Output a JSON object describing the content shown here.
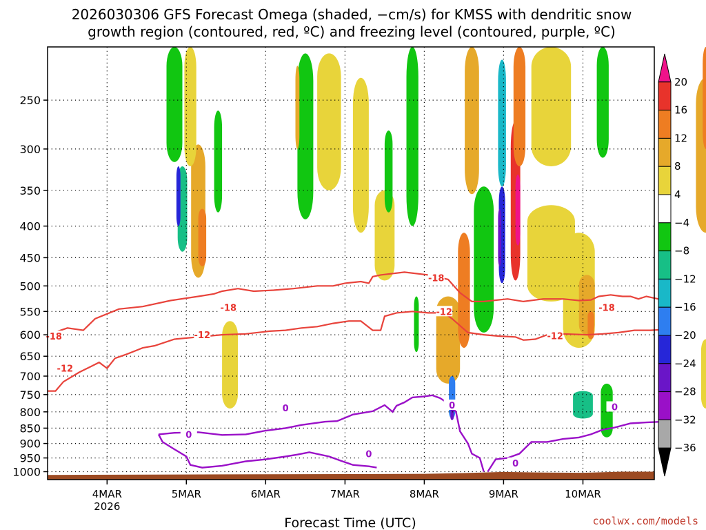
{
  "chart_data": {
    "type": "heatmap",
    "title_lines": [
      "2026030306 GFS Forecast Omega (shaded, −cm/s) for KMSS with dendritic snow",
      "growth region (contoured, red, ºC) and freezing level (contoured, purple, ºC)"
    ],
    "xlabel": "Forecast Time (UTC)",
    "credit": "coolwx.com/models",
    "y_axis": {
      "type": "pressure",
      "inverted": true,
      "ticks": [
        250,
        300,
        350,
        400,
        450,
        500,
        550,
        600,
        650,
        700,
        750,
        800,
        850,
        900,
        950,
        1000
      ],
      "range_hPa": [
        205,
        1030
      ]
    },
    "x_axis": {
      "range_days": [
        "3MAR 06Z",
        "10MAR 18Z"
      ],
      "ticks": [
        {
          "label": "4MAR",
          "sub": "2026",
          "day": 1
        },
        {
          "label": "5MAR",
          "sub": "",
          "day": 2
        },
        {
          "label": "6MAR",
          "sub": "",
          "day": 3
        },
        {
          "label": "7MAR",
          "sub": "",
          "day": 4
        },
        {
          "label": "8MAR",
          "sub": "",
          "day": 5
        },
        {
          "label": "9MAR",
          "sub": "",
          "day": 6
        },
        {
          "label": "10MAR",
          "sub": "",
          "day": 7
        }
      ]
    },
    "colorbar": {
      "labels": [
        "20",
        "16",
        "12",
        "8",
        "4",
        "−4",
        "−8",
        "−12",
        "−16",
        "−20",
        "−24",
        "−28",
        "−32",
        "−36"
      ],
      "colors": [
        "#f0128a",
        "#e8332b",
        "#ee7d22",
        "#e6a92a",
        "#e8d43a",
        "#ffffff",
        "#11c611",
        "#17bf86",
        "#19b8c8",
        "#2e7ef0",
        "#2626d8",
        "#6a15c8",
        "#9a10c8",
        "#a8a8a8",
        "#000000"
      ]
    },
    "grid": true,
    "red_contours": [
      {
        "label": "-18",
        "points": [
          [
            0.0,
            600
          ],
          [
            0.25,
            585
          ],
          [
            0.45,
            590
          ],
          [
            0.6,
            565
          ],
          [
            0.9,
            545
          ],
          [
            1.2,
            540
          ],
          [
            1.55,
            528
          ],
          [
            1.9,
            520
          ],
          [
            2.1,
            515
          ],
          [
            2.2,
            510
          ],
          [
            2.4,
            505
          ],
          [
            2.6,
            510
          ],
          [
            2.85,
            508
          ],
          [
            3.1,
            505
          ],
          [
            3.4,
            500
          ],
          [
            3.6,
            500
          ],
          [
            3.75,
            495
          ],
          [
            3.95,
            492
          ],
          [
            4.05,
            495
          ],
          [
            4.1,
            483
          ],
          [
            4.2,
            480
          ],
          [
            4.5,
            475
          ],
          [
            4.8,
            480
          ],
          [
            5.05,
            488
          ],
          [
            5.2,
            513
          ],
          [
            5.35,
            530
          ],
          [
            5.5,
            530
          ],
          [
            5.8,
            525
          ],
          [
            6.0,
            530
          ],
          [
            6.25,
            525
          ],
          [
            6.5,
            525
          ],
          [
            6.7,
            528
          ],
          [
            6.85,
            527
          ],
          [
            6.95,
            520
          ],
          [
            7.1,
            517
          ],
          [
            7.25,
            520
          ],
          [
            7.35,
            520
          ],
          [
            7.45,
            525
          ],
          [
            7.55,
            520
          ],
          [
            7.7,
            525
          ],
          [
            7.8,
            528
          ]
        ]
      },
      {
        "label": "-12",
        "points": [
          [
            0.0,
            740
          ],
          [
            0.1,
            740
          ],
          [
            0.2,
            715
          ],
          [
            0.4,
            690
          ],
          [
            0.55,
            675
          ],
          [
            0.65,
            665
          ],
          [
            0.75,
            680
          ],
          [
            0.85,
            655
          ],
          [
            1.0,
            645
          ],
          [
            1.2,
            630
          ],
          [
            1.35,
            625
          ],
          [
            1.6,
            610
          ],
          [
            1.9,
            605
          ],
          [
            2.2,
            600
          ],
          [
            2.5,
            598
          ],
          [
            2.8,
            592
          ],
          [
            3.0,
            590
          ],
          [
            3.2,
            585
          ],
          [
            3.4,
            582
          ],
          [
            3.6,
            575
          ],
          [
            3.8,
            570
          ],
          [
            3.95,
            570
          ],
          [
            4.1,
            590
          ],
          [
            4.2,
            590
          ],
          [
            4.25,
            560
          ],
          [
            4.4,
            553
          ],
          [
            4.6,
            550
          ],
          [
            4.8,
            553
          ],
          [
            5.0,
            553
          ],
          [
            5.1,
            565
          ],
          [
            5.2,
            580
          ],
          [
            5.3,
            595
          ],
          [
            5.5,
            600
          ],
          [
            5.7,
            603
          ],
          [
            5.9,
            605
          ],
          [
            6.0,
            612
          ],
          [
            6.15,
            610
          ],
          [
            6.3,
            600
          ],
          [
            6.5,
            598
          ],
          [
            6.8,
            600
          ],
          [
            7.0,
            598
          ],
          [
            7.2,
            595
          ],
          [
            7.4,
            590
          ],
          [
            7.6,
            590
          ],
          [
            7.8,
            588
          ]
        ]
      }
    ],
    "purple_contours": [
      {
        "label": "0",
        "points": [
          [
            1.4,
            870
          ],
          [
            1.6,
            865
          ],
          [
            1.9,
            863
          ],
          [
            2.2,
            872
          ],
          [
            2.5,
            870
          ],
          [
            2.75,
            858
          ],
          [
            3.0,
            850
          ],
          [
            3.2,
            840
          ],
          [
            3.5,
            830
          ],
          [
            3.65,
            828
          ],
          [
            3.85,
            808
          ],
          [
            4.1,
            798
          ],
          [
            4.25,
            780
          ],
          [
            4.35,
            800
          ],
          [
            4.4,
            782
          ],
          [
            4.5,
            772
          ],
          [
            4.6,
            758
          ],
          [
            4.75,
            755
          ],
          [
            4.85,
            752
          ],
          [
            4.95,
            760
          ],
          [
            5.05,
            775
          ],
          [
            5.15,
            800
          ],
          [
            5.2,
            860
          ],
          [
            5.3,
            900
          ],
          [
            5.35,
            935
          ],
          [
            5.45,
            950
          ],
          [
            5.5,
            1000
          ]
        ]
      },
      {
        "label": "0",
        "points": [
          [
            1.4,
            870
          ],
          [
            1.45,
            895
          ],
          [
            1.6,
            920
          ],
          [
            1.75,
            945
          ],
          [
            1.8,
            975
          ],
          [
            1.95,
            985
          ],
          [
            2.2,
            978
          ],
          [
            2.5,
            962
          ],
          [
            2.75,
            955
          ],
          [
            3.0,
            945
          ],
          [
            3.15,
            938
          ],
          [
            3.3,
            930
          ],
          [
            3.55,
            945
          ],
          [
            3.7,
            960
          ],
          [
            3.85,
            975
          ],
          [
            4.05,
            980
          ],
          [
            4.15,
            985
          ]
        ]
      },
      {
        "label": "0",
        "points": [
          [
            5.55,
            1000
          ],
          [
            5.65,
            955
          ],
          [
            5.8,
            950
          ],
          [
            5.95,
            935
          ],
          [
            6.1,
            895
          ],
          [
            6.3,
            895
          ],
          [
            6.5,
            885
          ],
          [
            6.7,
            880
          ],
          [
            6.85,
            870
          ],
          [
            7.0,
            855
          ],
          [
            7.15,
            848
          ],
          [
            7.35,
            835
          ],
          [
            7.55,
            832
          ],
          [
            7.75,
            830
          ],
          [
            7.8,
            828
          ]
        ]
      }
    ],
    "omega_cells": [
      {
        "x": 1.15,
        "p": 390,
        "w": 0.18,
        "h": 190,
        "v": 8
      },
      {
        "x": 1.2,
        "p": 420,
        "w": 0.1,
        "h": 90,
        "v": 12
      },
      {
        "x": 0.95,
        "p": 380,
        "w": 0.12,
        "h": 120,
        "v": -8
      },
      {
        "x": 0.9,
        "p": 360,
        "w": 0.05,
        "h": 80,
        "v": -20
      },
      {
        "x": 0.85,
        "p": 260,
        "w": 0.2,
        "h": 110,
        "v": -4.5
      },
      {
        "x": 1.05,
        "p": 260,
        "w": 0.15,
        "h": 120,
        "v": 4.5
      },
      {
        "x": 1.55,
        "p": 680,
        "w": 0.2,
        "h": 220,
        "v": 4.5
      },
      {
        "x": 1.4,
        "p": 320,
        "w": 0.1,
        "h": 120,
        "v": -4.5
      },
      {
        "x": 2.5,
        "p": 300,
        "w": 0.2,
        "h": 180,
        "v": -4.5
      },
      {
        "x": 2.4,
        "p": 260,
        "w": 0.05,
        "h": 80,
        "v": 8
      },
      {
        "x": 2.8,
        "p": 280,
        "w": 0.3,
        "h": 140,
        "v": 4.5
      },
      {
        "x": 3.2,
        "p": 320,
        "w": 0.2,
        "h": 180,
        "v": 4.5
      },
      {
        "x": 3.5,
        "p": 420,
        "w": 0.25,
        "h": 140,
        "v": 4.5
      },
      {
        "x": 3.55,
        "p": 330,
        "w": 0.1,
        "h": 100,
        "v": -4.5
      },
      {
        "x": 3.85,
        "p": 300,
        "w": 0.15,
        "h": 200,
        "v": -4.5
      },
      {
        "x": 3.9,
        "p": 580,
        "w": 0.06,
        "h": 120,
        "v": -4.5
      },
      {
        "x": 4.3,
        "p": 620,
        "w": 0.3,
        "h": 200,
        "v": 8
      },
      {
        "x": 4.5,
        "p": 520,
        "w": 0.15,
        "h": 220,
        "v": 12
      },
      {
        "x": 4.35,
        "p": 760,
        "w": 0.08,
        "h": 120,
        "v": -16
      },
      {
        "x": 4.35,
        "p": 800,
        "w": 0.04,
        "h": 50,
        "v": -24
      },
      {
        "x": 4.75,
        "p": 470,
        "w": 0.25,
        "h": 250,
        "v": -4.5
      },
      {
        "x": 4.98,
        "p": 420,
        "w": 0.08,
        "h": 150,
        "v": -20
      },
      {
        "x": 4.95,
        "p": 420,
        "w": 0.04,
        "h": 90,
        "v": -24
      },
      {
        "x": 5.15,
        "p": 380,
        "w": 0.12,
        "h": 220,
        "v": 16
      },
      {
        "x": 5.18,
        "p": 380,
        "w": 0.06,
        "h": 100,
        "v": 20
      },
      {
        "x": 4.98,
        "p": 280,
        "w": 0.1,
        "h": 130,
        "v": -12
      },
      {
        "x": 5.2,
        "p": 260,
        "w": 0.15,
        "h": 120,
        "v": 12
      },
      {
        "x": 4.6,
        "p": 280,
        "w": 0.18,
        "h": 150,
        "v": 8
      },
      {
        "x": 5.6,
        "p": 450,
        "w": 0.6,
        "h": 160,
        "v": 4.5
      },
      {
        "x": 5.95,
        "p": 520,
        "w": 0.4,
        "h": 220,
        "v": 4.5
      },
      {
        "x": 6.05,
        "p": 540,
        "w": 0.2,
        "h": 120,
        "v": 8
      },
      {
        "x": 6.1,
        "p": 580,
        "w": 0.08,
        "h": 60,
        "v": 12
      },
      {
        "x": 5.6,
        "p": 260,
        "w": 0.5,
        "h": 120,
        "v": 4.5
      },
      {
        "x": 6.0,
        "p": 780,
        "w": 0.25,
        "h": 80,
        "v": -8
      },
      {
        "x": 6.3,
        "p": 800,
        "w": 0.15,
        "h": 160,
        "v": -4.5
      },
      {
        "x": 6.25,
        "p": 250,
        "w": 0.15,
        "h": 120,
        "v": -4.5
      },
      {
        "x": 7.55,
        "p": 320,
        "w": 0.25,
        "h": 180,
        "v": 8
      },
      {
        "x": 7.55,
        "p": 250,
        "w": 0.08,
        "h": 100,
        "v": 12
      },
      {
        "x": 7.65,
        "p": 650,
        "w": 0.12,
        "h": 300,
        "v": -4.5
      },
      {
        "x": 7.65,
        "p": 650,
        "w": 0.06,
        "h": 160,
        "v": -12
      },
      {
        "x": 7.7,
        "p": 520,
        "w": 0.12,
        "h": 100,
        "v": 4.5
      },
      {
        "x": 7.55,
        "p": 700,
        "w": 0.12,
        "h": 180,
        "v": 4.5
      }
    ],
    "contour_label_positions": [
      {
        "text": "-18",
        "x": 0.08,
        "p": 603,
        "color": "#e8332b"
      },
      {
        "text": "-18",
        "x": 2.28,
        "p": 542,
        "color": "#e8332b"
      },
      {
        "text": "-18",
        "x": 4.9,
        "p": 485,
        "color": "#e8332b"
      },
      {
        "text": "-18",
        "x": 7.05,
        "p": 542,
        "color": "#e8332b"
      },
      {
        "text": "-12",
        "x": 0.22,
        "p": 680,
        "color": "#e8332b"
      },
      {
        "text": "-12",
        "x": 1.95,
        "p": 600,
        "color": "#e8332b"
      },
      {
        "text": "-12",
        "x": 5.0,
        "p": 550,
        "color": "#e8332b"
      },
      {
        "text": "-12",
        "x": 6.4,
        "p": 602,
        "color": "#e8332b"
      },
      {
        "text": "0",
        "x": 1.78,
        "p": 870,
        "color": "#9a10c8"
      },
      {
        "text": "0",
        "x": 3.0,
        "p": 788,
        "color": "#9a10c8"
      },
      {
        "text": "0",
        "x": 4.05,
        "p": 935,
        "color": "#9a10c8"
      },
      {
        "text": "0",
        "x": 5.1,
        "p": 780,
        "color": "#9a10c8"
      },
      {
        "text": "0",
        "x": 5.9,
        "p": 968,
        "color": "#9a10c8"
      },
      {
        "text": "0",
        "x": 7.15,
        "p": 785,
        "color": "#9a10c8"
      }
    ]
  }
}
